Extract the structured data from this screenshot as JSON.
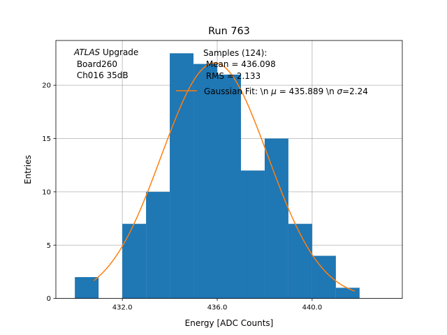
{
  "chart_data": {
    "type": "bar",
    "title": "Run 763",
    "xlabel": "Energy [ADC Counts]",
    "ylabel": "Entries",
    "xlim": [
      429.2,
      443.8
    ],
    "ylim": [
      0,
      24.2
    ],
    "xticks": [
      432.0,
      436.0,
      440.0
    ],
    "xtick_labels": [
      "432.0",
      "436.0",
      "440.0"
    ],
    "yticks": [
      0,
      5,
      10,
      15,
      20
    ],
    "ytick_labels": [
      "0",
      "5",
      "10",
      "15",
      "20"
    ],
    "grid": true,
    "bar_color": "#1f77b4",
    "histogram": {
      "bin_edges": [
        430,
        431,
        432,
        433,
        434,
        435,
        436,
        437,
        438,
        439,
        440,
        441,
        442
      ],
      "counts": [
        2,
        0,
        7,
        10,
        23,
        22,
        21,
        12,
        15,
        7,
        4,
        1
      ]
    },
    "fit": {
      "name": "Gaussian Fit: \\n $\\mu$ = 435.889 \\n $\\sigma$=2.24",
      "color": "#ff7f0e",
      "mu": 435.889,
      "sigma": 2.24,
      "amplitude": 22.1,
      "x_range": [
        430.8,
        441.8
      ]
    },
    "annotations": {
      "atlas_italic": "ATLAS",
      "atlas_rest": " Upgrade",
      "board": " Board260",
      "channel": " Ch016 35dB",
      "samples_line1": "Samples (124):",
      "samples_line2": " Mean = 436.098",
      "samples_line3": " RMS = 2.133",
      "fit_legend_prefix": "Gaussian Fit: \\n ",
      "fit_legend_mu": "μ",
      "fit_legend_mid": " = 435.889 \\n ",
      "fit_legend_sigma": "σ",
      "fit_legend_suffix": "=2.24"
    }
  }
}
